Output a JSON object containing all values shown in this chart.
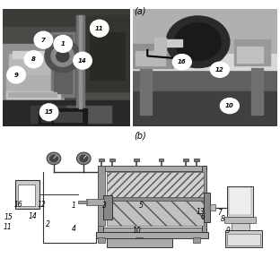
{
  "fig_width": 3.12,
  "fig_height": 2.88,
  "dpi": 100,
  "bg_color": "#ffffff",
  "label_a": "(a)",
  "label_b": "(b)",
  "font_size_label": 7,
  "numbers_left_photo": [
    {
      "text": "7",
      "fx": 0.155,
      "fy": 0.845
    },
    {
      "text": "1",
      "fx": 0.225,
      "fy": 0.83
    },
    {
      "text": "11",
      "fx": 0.355,
      "fy": 0.89
    },
    {
      "text": "8",
      "fx": 0.12,
      "fy": 0.77
    },
    {
      "text": "14",
      "fx": 0.295,
      "fy": 0.765
    },
    {
      "text": "9",
      "fx": 0.058,
      "fy": 0.71
    },
    {
      "text": "15",
      "fx": 0.175,
      "fy": 0.565
    }
  ],
  "numbers_right_photo": [
    {
      "text": "12",
      "fx": 0.785,
      "fy": 0.73
    },
    {
      "text": "16",
      "fx": 0.65,
      "fy": 0.76
    },
    {
      "text": "10",
      "fx": 0.82,
      "fy": 0.59
    }
  ],
  "diagram_numbers": [
    {
      "text": "16",
      "fx": 0.058,
      "fy": 0.39
    },
    {
      "text": "12",
      "fx": 0.142,
      "fy": 0.39
    },
    {
      "text": "1",
      "fx": 0.258,
      "fy": 0.38
    },
    {
      "text": "3",
      "fx": 0.37,
      "fy": 0.383
    },
    {
      "text": "5",
      "fx": 0.505,
      "fy": 0.383
    },
    {
      "text": "13",
      "fx": 0.72,
      "fy": 0.328
    },
    {
      "text": "7",
      "fx": 0.79,
      "fy": 0.318
    },
    {
      "text": "6",
      "fx": 0.73,
      "fy": 0.278
    },
    {
      "text": "8",
      "fx": 0.8,
      "fy": 0.265
    },
    {
      "text": "15",
      "fx": 0.02,
      "fy": 0.278
    },
    {
      "text": "14",
      "fx": 0.11,
      "fy": 0.285
    },
    {
      "text": "2",
      "fx": 0.165,
      "fy": 0.218
    },
    {
      "text": "11",
      "fx": 0.018,
      "fy": 0.192
    },
    {
      "text": "4",
      "fx": 0.258,
      "fy": 0.178
    },
    {
      "text": "10",
      "fx": 0.488,
      "fy": 0.16
    },
    {
      "text": "9",
      "fx": 0.82,
      "fy": 0.158
    }
  ]
}
